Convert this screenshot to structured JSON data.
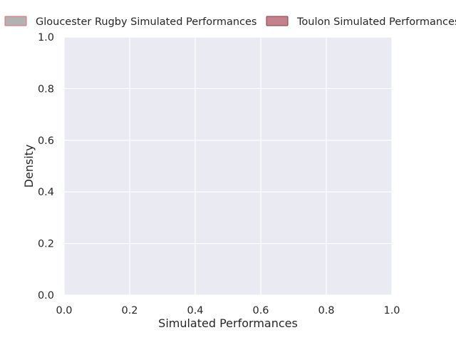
{
  "chart_data": {
    "type": "area",
    "title": "",
    "xlabel": "Simulated Performances",
    "ylabel": "Density",
    "xlim": [
      0,
      1
    ],
    "ylim": [
      0,
      1
    ],
    "x_ticks": [
      "0.0",
      "0.2",
      "0.4",
      "0.6",
      "0.8",
      "1.0"
    ],
    "y_ticks": [
      "0.0",
      "0.2",
      "0.4",
      "0.6",
      "0.8",
      "1.0"
    ],
    "grid": true,
    "legend_position": "top",
    "series": [
      {
        "name": "Gloucester Rugby Simulated Performances",
        "fill_color": "#b2b2b2",
        "edge_color": "#e06a7a",
        "x": [],
        "y": []
      },
      {
        "name": "Toulon Simulated Performances",
        "fill_color": "#c4838c",
        "edge_color": "#8c3b47",
        "x": [],
        "y": []
      }
    ],
    "colors": {
      "plot_background": "#eaeaf2",
      "grid": "#ffffff",
      "text": "#262626"
    }
  }
}
